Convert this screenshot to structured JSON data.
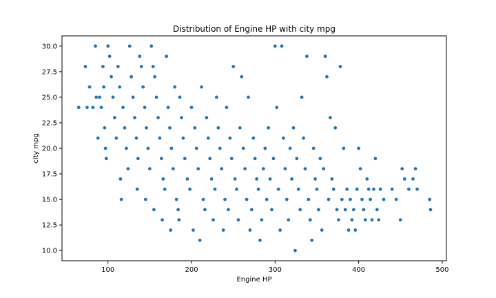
{
  "chart_data": {
    "type": "scatter",
    "title": "Distribution of Engine HP with city mpg",
    "xlabel": "Engine HP",
    "ylabel": "city mpg",
    "xlim": [
      45,
      505
    ],
    "ylim": [
      9.0,
      31.0
    ],
    "x_ticks": [
      100,
      200,
      300,
      400,
      500
    ],
    "y_ticks": [
      10.0,
      12.5,
      15.0,
      17.5,
      20.0,
      22.5,
      25.0,
      27.5,
      30.0
    ],
    "y_tick_labels": [
      "10.0",
      "12.5",
      "15.0",
      "17.5",
      "20.0",
      "22.5",
      "25.0",
      "27.5",
      "30.0"
    ],
    "grid": false,
    "marker_color": "#1f77b4",
    "points": [
      [
        65,
        24
      ],
      [
        73,
        28
      ],
      [
        75,
        24
      ],
      [
        78,
        26
      ],
      [
        82,
        24
      ],
      [
        85,
        30
      ],
      [
        86,
        25
      ],
      [
        88,
        21
      ],
      [
        90,
        25
      ],
      [
        92,
        24
      ],
      [
        94,
        28
      ],
      [
        95,
        26
      ],
      [
        96,
        22
      ],
      [
        97,
        20
      ],
      [
        98,
        19
      ],
      [
        100,
        30
      ],
      [
        102,
        29
      ],
      [
        104,
        27
      ],
      [
        106,
        25
      ],
      [
        108,
        23
      ],
      [
        110,
        21
      ],
      [
        112,
        28
      ],
      [
        114,
        26
      ],
      [
        115,
        17
      ],
      [
        116,
        15
      ],
      [
        118,
        24
      ],
      [
        120,
        22
      ],
      [
        122,
        20
      ],
      [
        124,
        18
      ],
      [
        126,
        30
      ],
      [
        128,
        27
      ],
      [
        130,
        25
      ],
      [
        132,
        23
      ],
      [
        134,
        21
      ],
      [
        135,
        16
      ],
      [
        136,
        19
      ],
      [
        138,
        29
      ],
      [
        140,
        28
      ],
      [
        142,
        26
      ],
      [
        144,
        24
      ],
      [
        145,
        15
      ],
      [
        146,
        22
      ],
      [
        148,
        20
      ],
      [
        150,
        18
      ],
      [
        152,
        30
      ],
      [
        154,
        28
      ],
      [
        155,
        14
      ],
      [
        156,
        27
      ],
      [
        158,
        25
      ],
      [
        160,
        23
      ],
      [
        162,
        21
      ],
      [
        164,
        19
      ],
      [
        165,
        13
      ],
      [
        166,
        17
      ],
      [
        168,
        16
      ],
      [
        170,
        29
      ],
      [
        172,
        24
      ],
      [
        174,
        22
      ],
      [
        175,
        12
      ],
      [
        176,
        20
      ],
      [
        178,
        18
      ],
      [
        180,
        26
      ],
      [
        182,
        15
      ],
      [
        184,
        14
      ],
      [
        185,
        13
      ],
      [
        186,
        25
      ],
      [
        188,
        23
      ],
      [
        190,
        21
      ],
      [
        192,
        19
      ],
      [
        195,
        17
      ],
      [
        198,
        16
      ],
      [
        200,
        24
      ],
      [
        202,
        12
      ],
      [
        204,
        22
      ],
      [
        206,
        20
      ],
      [
        208,
        18
      ],
      [
        210,
        11
      ],
      [
        212,
        26
      ],
      [
        214,
        15
      ],
      [
        216,
        14
      ],
      [
        218,
        23
      ],
      [
        220,
        21
      ],
      [
        222,
        19
      ],
      [
        224,
        17
      ],
      [
        226,
        13
      ],
      [
        228,
        16
      ],
      [
        230,
        25
      ],
      [
        232,
        22
      ],
      [
        234,
        20
      ],
      [
        236,
        18
      ],
      [
        238,
        12
      ],
      [
        240,
        15
      ],
      [
        242,
        24
      ],
      [
        244,
        14
      ],
      [
        246,
        21
      ],
      [
        248,
        19
      ],
      [
        250,
        28
      ],
      [
        252,
        17
      ],
      [
        254,
        16
      ],
      [
        256,
        13
      ],
      [
        258,
        22
      ],
      [
        260,
        27
      ],
      [
        262,
        20
      ],
      [
        264,
        18
      ],
      [
        266,
        15
      ],
      [
        268,
        25
      ],
      [
        270,
        12
      ],
      [
        272,
        14
      ],
      [
        274,
        21
      ],
      [
        276,
        19
      ],
      [
        278,
        17
      ],
      [
        280,
        16
      ],
      [
        282,
        11
      ],
      [
        284,
        13
      ],
      [
        286,
        18
      ],
      [
        288,
        20
      ],
      [
        290,
        15
      ],
      [
        292,
        22
      ],
      [
        294,
        17
      ],
      [
        296,
        14
      ],
      [
        298,
        19
      ],
      [
        300,
        30
      ],
      [
        302,
        24
      ],
      [
        304,
        16
      ],
      [
        306,
        12
      ],
      [
        308,
        30
      ],
      [
        310,
        21
      ],
      [
        312,
        18
      ],
      [
        314,
        15
      ],
      [
        316,
        13
      ],
      [
        318,
        20
      ],
      [
        320,
        17
      ],
      [
        322,
        22
      ],
      [
        324,
        10
      ],
      [
        326,
        19
      ],
      [
        328,
        16
      ],
      [
        330,
        14
      ],
      [
        332,
        25
      ],
      [
        334,
        21
      ],
      [
        336,
        18
      ],
      [
        338,
        29
      ],
      [
        340,
        15
      ],
      [
        342,
        13
      ],
      [
        344,
        11
      ],
      [
        346,
        20
      ],
      [
        348,
        17
      ],
      [
        350,
        16
      ],
      [
        352,
        14
      ],
      [
        354,
        19
      ],
      [
        356,
        12
      ],
      [
        358,
        18
      ],
      [
        360,
        29
      ],
      [
        362,
        27
      ],
      [
        364,
        15
      ],
      [
        366,
        23
      ],
      [
        368,
        17
      ],
      [
        370,
        16
      ],
      [
        372,
        22
      ],
      [
        374,
        14
      ],
      [
        376,
        13
      ],
      [
        378,
        28
      ],
      [
        380,
        15
      ],
      [
        382,
        20
      ],
      [
        384,
        14
      ],
      [
        386,
        16
      ],
      [
        388,
        12
      ],
      [
        390,
        15
      ],
      [
        392,
        13
      ],
      [
        394,
        14
      ],
      [
        396,
        12
      ],
      [
        398,
        16
      ],
      [
        400,
        20
      ],
      [
        402,
        18
      ],
      [
        404,
        15
      ],
      [
        406,
        14
      ],
      [
        408,
        13
      ],
      [
        410,
        17
      ],
      [
        412,
        16
      ],
      [
        414,
        15
      ],
      [
        416,
        13
      ],
      [
        418,
        16
      ],
      [
        420,
        19
      ],
      [
        422,
        14
      ],
      [
        424,
        13
      ],
      [
        426,
        16
      ],
      [
        430,
        15
      ],
      [
        440,
        16
      ],
      [
        445,
        15
      ],
      [
        450,
        13
      ],
      [
        452,
        18
      ],
      [
        455,
        17
      ],
      [
        460,
        16
      ],
      [
        465,
        17
      ],
      [
        468,
        18
      ],
      [
        470,
        16
      ],
      [
        485,
        15
      ],
      [
        486,
        14
      ]
    ]
  }
}
